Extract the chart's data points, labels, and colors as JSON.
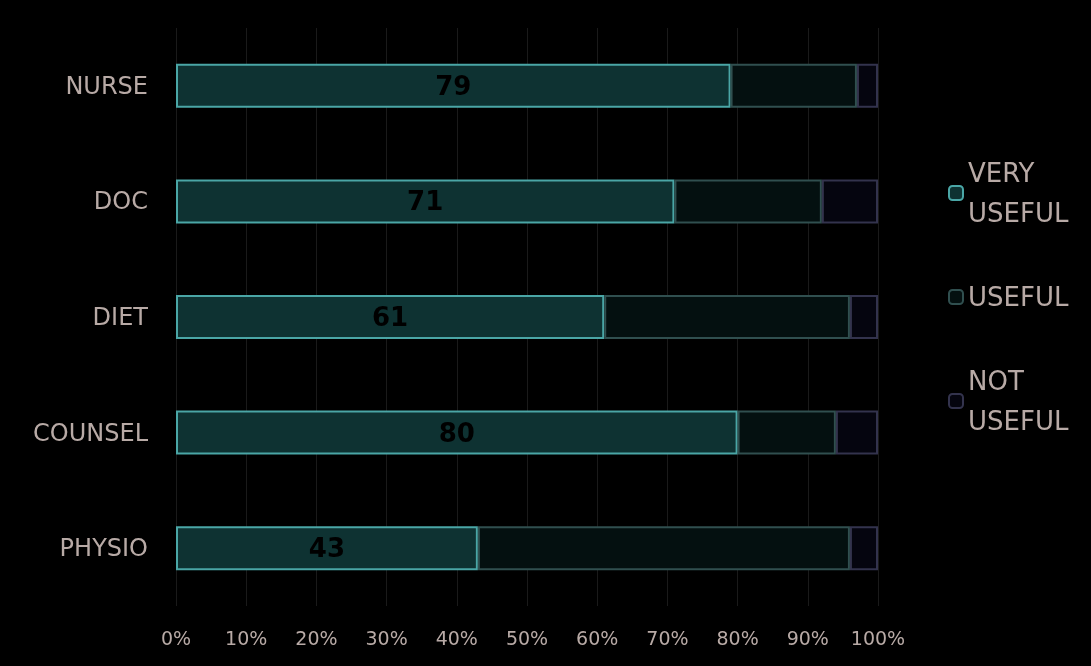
{
  "chart_data": {
    "type": "bar",
    "orientation": "horizontal",
    "stacked": true,
    "categories": [
      "NURSE",
      "DOC",
      "DIET",
      "COUNSEL",
      "PHYSIO"
    ],
    "series": [
      {
        "name": "VERY USEFUL",
        "color": "#0e3232",
        "values": [
          79,
          71,
          61,
          80,
          43
        ],
        "value_labels": [
          "79",
          "71",
          "61",
          "80",
          "43"
        ]
      },
      {
        "name": "USEFUL",
        "color": "#041010",
        "values": [
          18,
          21,
          35,
          14,
          53
        ]
      },
      {
        "name": "NOT USEFUL",
        "color": "#05050f",
        "values": [
          3,
          8,
          4,
          6,
          4
        ]
      }
    ],
    "xlim": [
      0,
      100
    ],
    "xticks": [
      {
        "value": 0,
        "label": "0%"
      },
      {
        "value": 10,
        "label": "10%"
      },
      {
        "value": 20,
        "label": "20%"
      },
      {
        "value": 30,
        "label": "30%"
      },
      {
        "value": 40,
        "label": "40%"
      },
      {
        "value": 50,
        "label": "50%"
      },
      {
        "value": 60,
        "label": "60%"
      },
      {
        "value": 70,
        "label": "70%"
      },
      {
        "value": 80,
        "label": "80%"
      },
      {
        "value": 90,
        "label": "90%"
      },
      {
        "value": 100,
        "label": "100%"
      }
    ],
    "grid": "x",
    "legend": "right"
  }
}
